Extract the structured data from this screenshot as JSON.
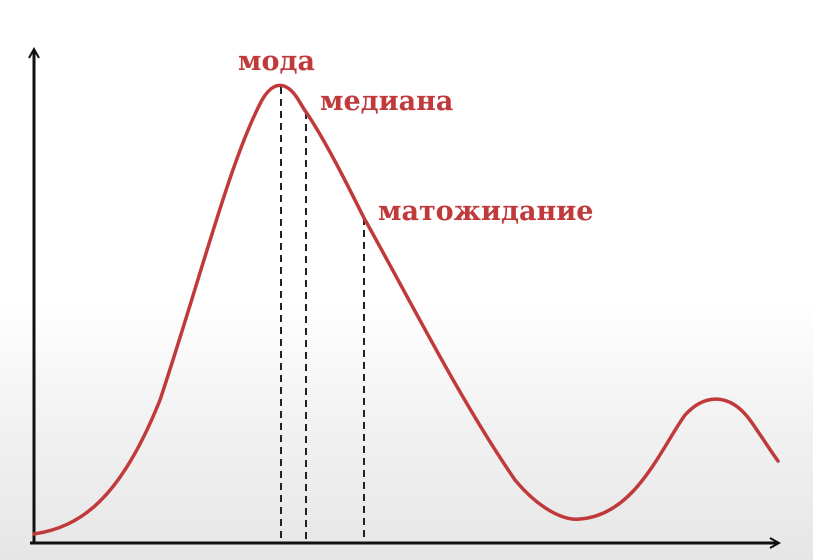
{
  "labels": {
    "mode": "мода",
    "median": "медиана",
    "mean": "матожидание"
  },
  "colors": {
    "curve": "#c0393b",
    "label": "#c0393b",
    "axis": "#111111",
    "guide": "#222222"
  }
}
